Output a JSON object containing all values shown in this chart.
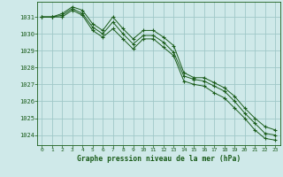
{
  "title": "Graphe pression niveau de la mer (hPa)",
  "background_color": "#cfe9e9",
  "plot_bg_color": "#cfe9e9",
  "grid_color": "#a0c8c8",
  "line_color": "#1a5c1a",
  "marker_color": "#1a5c1a",
  "x_labels": [
    "0",
    "1",
    "2",
    "3",
    "4",
    "5",
    "6",
    "7",
    "8",
    "9",
    "10",
    "11",
    "12",
    "13",
    "14",
    "15",
    "16",
    "17",
    "18",
    "19",
    "20",
    "21",
    "22",
    "23"
  ],
  "xlim": [
    -0.5,
    23.5
  ],
  "ylim": [
    1023.4,
    1031.9
  ],
  "yticks": [
    1024,
    1025,
    1026,
    1027,
    1028,
    1029,
    1030,
    1031
  ],
  "series": [
    [
      1031.0,
      1031.0,
      1031.1,
      1031.5,
      1031.2,
      1030.4,
      1030.0,
      1030.7,
      1030.0,
      1029.4,
      1029.9,
      1029.9,
      1029.5,
      1028.9,
      1027.5,
      1027.3,
      1027.2,
      1026.9,
      1026.6,
      1026.0,
      1025.3,
      1024.7,
      1024.1,
      1024.0
    ],
    [
      1031.0,
      1031.0,
      1031.2,
      1031.6,
      1031.4,
      1030.6,
      1030.2,
      1031.0,
      1030.3,
      1029.7,
      1030.2,
      1030.2,
      1029.8,
      1029.3,
      1027.7,
      1027.4,
      1027.4,
      1027.1,
      1026.8,
      1026.3,
      1025.6,
      1025.0,
      1024.5,
      1024.3
    ],
    [
      1031.0,
      1031.0,
      1031.0,
      1031.4,
      1031.1,
      1030.2,
      1029.8,
      1030.3,
      1029.7,
      1029.1,
      1029.7,
      1029.7,
      1029.2,
      1028.7,
      1027.2,
      1027.0,
      1026.9,
      1026.5,
      1026.2,
      1025.6,
      1025.0,
      1024.3,
      1023.8,
      1023.7
    ]
  ]
}
